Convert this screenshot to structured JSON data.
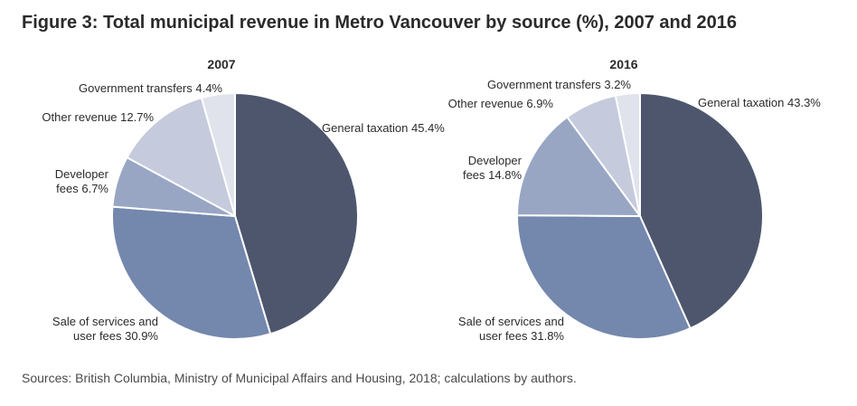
{
  "figure": {
    "title": "Figure 3: Total municipal revenue in Metro Vancouver by source (%), 2007 and 2016",
    "source": "Sources: British Columbia, Ministry of Municipal Affairs and Housing, 2018; calculations by authors."
  },
  "chart_data": [
    {
      "type": "pie",
      "title": "2007",
      "slices": [
        {
          "label": [
            "General taxation 45.4%"
          ],
          "value": 45.4,
          "color": "#4d566d"
        },
        {
          "label": [
            "Sale of services and",
            "user fees 30.9%"
          ],
          "value": 30.9,
          "color": "#7487ad"
        },
        {
          "label": [
            "Developer",
            "fees 6.7%"
          ],
          "value": 6.7,
          "color": "#98a6c4"
        },
        {
          "label": [
            "Other revenue 12.7%"
          ],
          "value": 12.7,
          "color": "#c5cadc"
        },
        {
          "label": [
            "Government transfers 4.4%"
          ],
          "value": 4.4,
          "color": "#e0e3ec"
        }
      ]
    },
    {
      "type": "pie",
      "title": "2016",
      "slices": [
        {
          "label": [
            "General taxation 43.3%"
          ],
          "value": 43.3,
          "color": "#4d566d"
        },
        {
          "label": [
            "Sale of services and",
            "user fees 31.8%"
          ],
          "value": 31.8,
          "color": "#7487ad"
        },
        {
          "label": [
            "Developer",
            "fees 14.8%"
          ],
          "value": 14.8,
          "color": "#98a6c4"
        },
        {
          "label": [
            "Other revenue 6.9%"
          ],
          "value": 6.9,
          "color": "#c5cadc"
        },
        {
          "label": [
            "Government transfers 3.2%"
          ],
          "value": 3.2,
          "color": "#e0e3ec"
        }
      ]
    }
  ]
}
